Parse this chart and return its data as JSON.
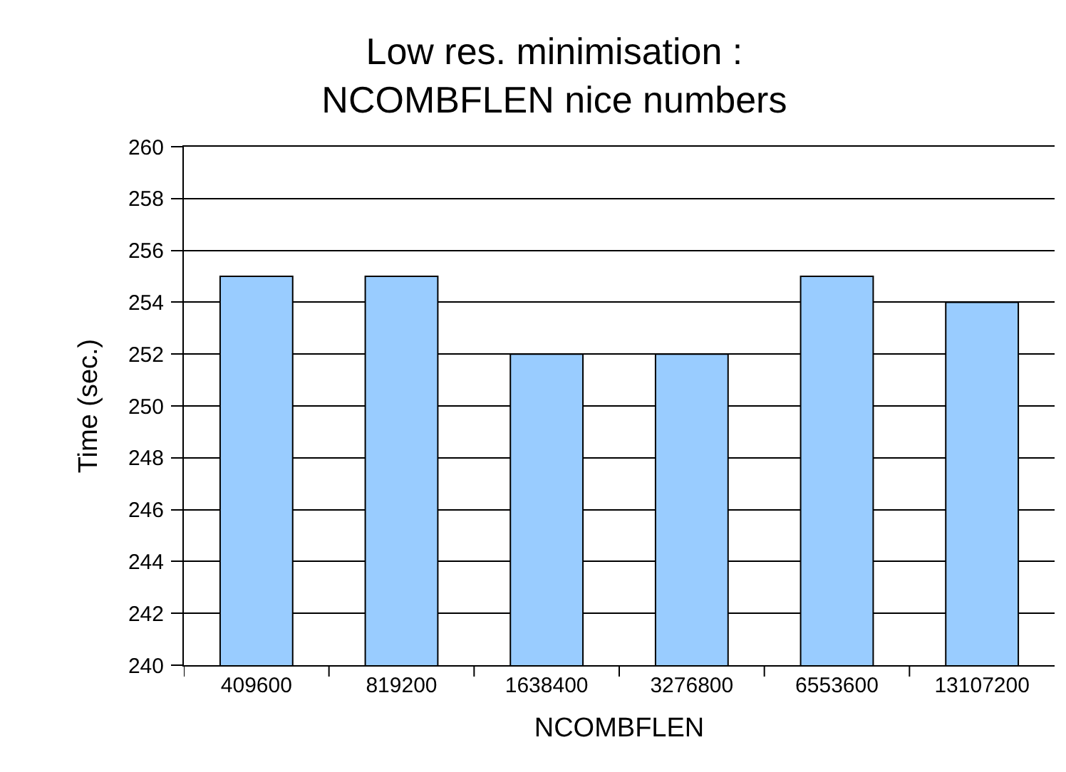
{
  "chart_data": {
    "type": "bar",
    "title": "Low res. minimisation :\nNCOMBFLEN nice numbers",
    "xlabel": "NCOMBFLEN",
    "ylabel": "Time (sec.)",
    "categories": [
      "409600",
      "819200",
      "1638400",
      "3276800",
      "6553600",
      "13107200"
    ],
    "values": [
      255,
      255,
      252,
      252,
      255,
      254
    ],
    "color": "#99ccff",
    "ylim": [
      240,
      260
    ],
    "yticks": [
      240,
      242,
      244,
      246,
      248,
      250,
      252,
      254,
      256,
      258,
      260
    ],
    "grid": "y"
  }
}
